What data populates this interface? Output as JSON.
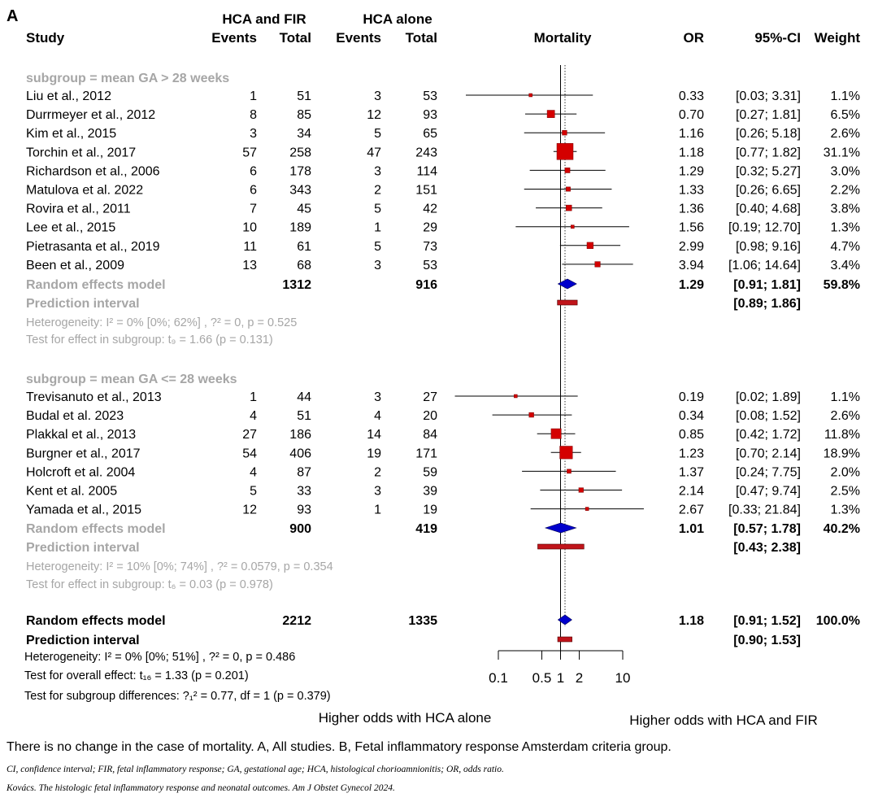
{
  "panel_label": "A",
  "headers": {
    "group1": "HCA and FIR",
    "group2": "HCA alone",
    "study": "Study",
    "events": "Events",
    "total": "Total",
    "mortality": "Mortality",
    "or": "OR",
    "ci": "95%-CI",
    "weight": "Weight"
  },
  "footer_lines": {
    "overall_het": "Heterogeneity:  I² = 0% [0%; 51%] ,  ?² = 0,  p = 0.486",
    "overall_test": "Test for overall effect:  t₁₆ = 1.33  (p = 0.201)",
    "subgroup_diff": "Test for subgroup differences:  ?₁² = 0.77, df = 1  (p = 0.379)"
  },
  "axis_labels": {
    "left": "Higher odds with HCA alone",
    "right": "Higher odds with HCA and FIR"
  },
  "caption": {
    "main": "There is no change in the case of mortality. A, All studies. B, Fetal inflammatory response Amsterdam criteria group.",
    "abbreviations": "CI, confidence interval; FIR, fetal inflammatory response; GA, gestational age; HCA, histological chorioamnionitis; OR, odds ratio.",
    "citation": "Kovács. The histologic fetal inflammatory response and neonatal outcomes. Am J Obstet Gynecol 2024."
  },
  "colors": {
    "square": "#d40000",
    "diamond": "#0000cc",
    "prediction": "#c0141a",
    "subgroup_text": "#a6a6a6"
  },
  "chart_data": {
    "type": "forest",
    "xscale": "log",
    "xlim": [
      0.1,
      10
    ],
    "xticks": [
      0.1,
      0.5,
      1,
      2,
      10
    ],
    "xtick_labels": [
      "0.1",
      "0.5",
      "1",
      "2",
      "10"
    ],
    "null_value": 1,
    "overall_or": 1.18,
    "subgroups": [
      {
        "label": "subgroup = mean GA > 28 weeks",
        "studies": [
          {
            "study": "Liu et al., 2012",
            "e1": "1",
            "t1": "51",
            "e2": "3",
            "t2": "53",
            "or": 0.33,
            "lo": 0.03,
            "hi": 3.31,
            "or_text": "0.33",
            "ci_text": "[0.03;  3.31]",
            "weight": 1.1,
            "weight_text": "1.1%"
          },
          {
            "study": "Durrmeyer et al., 2012",
            "e1": "8",
            "t1": "85",
            "e2": "12",
            "t2": "93",
            "or": 0.7,
            "lo": 0.27,
            "hi": 1.81,
            "or_text": "0.70",
            "ci_text": "[0.27;  1.81]",
            "weight": 6.5,
            "weight_text": "6.5%"
          },
          {
            "study": "Kim et al., 2015",
            "e1": "3",
            "t1": "34",
            "e2": "5",
            "t2": "65",
            "or": 1.16,
            "lo": 0.26,
            "hi": 5.18,
            "or_text": "1.16",
            "ci_text": "[0.26;  5.18]",
            "weight": 2.6,
            "weight_text": "2.6%"
          },
          {
            "study": "Torchin et al., 2017",
            "e1": "57",
            "t1": "258",
            "e2": "47",
            "t2": "243",
            "or": 1.18,
            "lo": 0.77,
            "hi": 1.82,
            "or_text": "1.18",
            "ci_text": "[0.77;  1.82]",
            "weight": 31.1,
            "weight_text": "31.1%"
          },
          {
            "study": "Richardson et al., 2006",
            "e1": "6",
            "t1": "178",
            "e2": "3",
            "t2": "114",
            "or": 1.29,
            "lo": 0.32,
            "hi": 5.27,
            "or_text": "1.29",
            "ci_text": "[0.32;  5.27]",
            "weight": 3.0,
            "weight_text": "3.0%"
          },
          {
            "study": "Matulova et al. 2022",
            "e1": "6",
            "t1": "343",
            "e2": "2",
            "t2": "151",
            "or": 1.33,
            "lo": 0.26,
            "hi": 6.65,
            "or_text": "1.33",
            "ci_text": "[0.26;  6.65]",
            "weight": 2.2,
            "weight_text": "2.2%"
          },
          {
            "study": "Rovira et al., 2011",
            "e1": "7",
            "t1": "45",
            "e2": "5",
            "t2": "42",
            "or": 1.36,
            "lo": 0.4,
            "hi": 4.68,
            "or_text": "1.36",
            "ci_text": "[0.40;  4.68]",
            "weight": 3.8,
            "weight_text": "3.8%"
          },
          {
            "study": "Lee et al., 2015",
            "e1": "10",
            "t1": "189",
            "e2": "1",
            "t2": "29",
            "or": 1.56,
            "lo": 0.19,
            "hi": 12.7,
            "or_text": "1.56",
            "ci_text": "[0.19; 12.70]",
            "weight": 1.3,
            "weight_text": "1.3%"
          },
          {
            "study": "Pietrasanta et al., 2019",
            "e1": "11",
            "t1": "61",
            "e2": "5",
            "t2": "73",
            "or": 2.99,
            "lo": 0.98,
            "hi": 9.16,
            "or_text": "2.99",
            "ci_text": "[0.98;  9.16]",
            "weight": 4.7,
            "weight_text": "4.7%"
          },
          {
            "study": "Been et al., 2009",
            "e1": "13",
            "t1": "68",
            "e2": "3",
            "t2": "53",
            "or": 3.94,
            "lo": 1.06,
            "hi": 14.64,
            "or_text": "3.94",
            "ci_text": "[1.06; 14.64]",
            "weight": 3.4,
            "weight_text": "3.4%"
          }
        ],
        "model": {
          "label": "Random effects model",
          "t1": "1312",
          "t2": "916",
          "or": 1.29,
          "lo": 0.91,
          "hi": 1.81,
          "or_text": "1.29",
          "ci_text": "[0.91;  1.81]",
          "weight_text": "59.8%"
        },
        "prediction": {
          "label": "Prediction interval",
          "lo": 0.89,
          "hi": 1.86,
          "ci_text": "[0.89;  1.86]"
        },
        "heterogeneity": "Heterogeneity:  I² = 0% [0%; 62%] ,  ?² = 0,  p = 0.525",
        "effect_test": "Test for effect in subgroup:   t₉ = 1.66  (p = 0.131)"
      },
      {
        "label": "subgroup = mean GA <= 28 weeks",
        "studies": [
          {
            "study": "Trevisanuto et al., 2013",
            "e1": "1",
            "t1": "44",
            "e2": "3",
            "t2": "27",
            "or": 0.19,
            "lo": 0.02,
            "hi": 1.89,
            "or_text": "0.19",
            "ci_text": "[0.02;  1.89]",
            "weight": 1.1,
            "weight_text": "1.1%"
          },
          {
            "study": "Budal et al. 2023",
            "e1": "4",
            "t1": "51",
            "e2": "4",
            "t2": "20",
            "or": 0.34,
            "lo": 0.08,
            "hi": 1.52,
            "or_text": "0.34",
            "ci_text": "[0.08;  1.52]",
            "weight": 2.6,
            "weight_text": "2.6%"
          },
          {
            "study": "Plakkal et al., 2013",
            "e1": "27",
            "t1": "186",
            "e2": "14",
            "t2": "84",
            "or": 0.85,
            "lo": 0.42,
            "hi": 1.72,
            "or_text": "0.85",
            "ci_text": "[0.42;  1.72]",
            "weight": 11.8,
            "weight_text": "11.8%"
          },
          {
            "study": "Burgner et al., 2017",
            "e1": "54",
            "t1": "406",
            "e2": "19",
            "t2": "171",
            "or": 1.23,
            "lo": 0.7,
            "hi": 2.14,
            "or_text": "1.23",
            "ci_text": "[0.70;  2.14]",
            "weight": 18.9,
            "weight_text": "18.9%"
          },
          {
            "study": "Holcroft et al. 2004",
            "e1": "4",
            "t1": "87",
            "e2": "2",
            "t2": "59",
            "or": 1.37,
            "lo": 0.24,
            "hi": 7.75,
            "or_text": "1.37",
            "ci_text": "[0.24;  7.75]",
            "weight": 2.0,
            "weight_text": "2.0%"
          },
          {
            "study": "Kent et al. 2005",
            "e1": "5",
            "t1": "33",
            "e2": "3",
            "t2": "39",
            "or": 2.14,
            "lo": 0.47,
            "hi": 9.74,
            "or_text": "2.14",
            "ci_text": "[0.47;  9.74]",
            "weight": 2.5,
            "weight_text": "2.5%"
          },
          {
            "study": "Yamada et al., 2015",
            "e1": "12",
            "t1": "93",
            "e2": "1",
            "t2": "19",
            "or": 2.67,
            "lo": 0.33,
            "hi": 21.84,
            "or_text": "2.67",
            "ci_text": "[0.33; 21.84]",
            "weight": 1.3,
            "weight_text": "1.3%"
          }
        ],
        "model": {
          "label": "Random effects model",
          "t1": "900",
          "t2": "419",
          "or": 1.01,
          "lo": 0.57,
          "hi": 1.78,
          "or_text": "1.01",
          "ci_text": "[0.57;  1.78]",
          "weight_text": "40.2%"
        },
        "prediction": {
          "label": "Prediction interval",
          "lo": 0.43,
          "hi": 2.38,
          "ci_text": "[0.43;  2.38]"
        },
        "heterogeneity": "Heterogeneity:  I² = 10% [0%; 74%] ,  ?² = 0.0579,  p = 0.354",
        "effect_test": "Test for effect in subgroup:   t₆ = 0.03  (p = 0.978)"
      }
    ],
    "overall": {
      "model": {
        "label": "Random effects model",
        "t1": "2212",
        "t2": "1335",
        "or": 1.18,
        "lo": 0.91,
        "hi": 1.52,
        "or_text": "1.18",
        "ci_text": "[0.91;  1.52]",
        "weight_text": "100.0%"
      },
      "prediction": {
        "label": "Prediction interval",
        "lo": 0.9,
        "hi": 1.53,
        "ci_text": "[0.90;  1.53]"
      }
    }
  }
}
